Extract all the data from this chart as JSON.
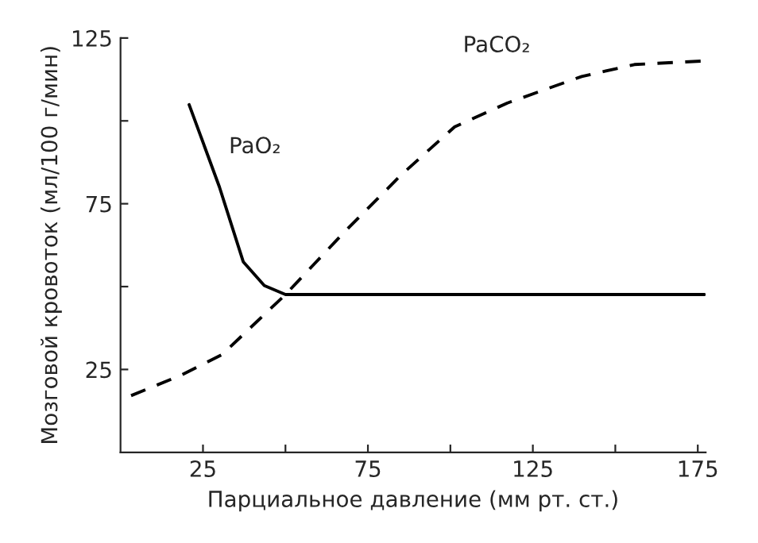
{
  "chart_data": {
    "type": "line",
    "xlabel": "Парциальное давление (мм рт. ст.)",
    "ylabel": "Мозговой кровоток (мл/100 г/мин)",
    "series": [
      {
        "name": "PaO₂",
        "color": "#000000",
        "line_style": "solid",
        "x": [
          20.8,
          30,
          37.2,
          43.6,
          50,
          100,
          177
        ],
        "values": [
          104.9,
          80,
          57.5,
          50.3,
          47.6,
          47.6,
          47.6
        ]
      },
      {
        "name": "PaCO₂",
        "color": "#000000",
        "line_style": "dashed",
        "x": [
          3.2,
          18,
          30.8,
          50,
          67.6,
          85.2,
          101.3,
          117.3,
          139.8,
          155.8,
          177.4
        ],
        "values": [
          17.1,
          23.1,
          29.5,
          47.6,
          66.2,
          83.8,
          98.2,
          105.4,
          113.4,
          117,
          118.1
        ]
      }
    ],
    "xlim": [
      0,
      177.4
    ],
    "ylim": [
      0,
      125
    ],
    "xticks": [
      25,
      {
        "value": 50,
        "label": null
      },
      75,
      {
        "value": 100,
        "label": null
      },
      125,
      {
        "value": 150,
        "label": null
      },
      175
    ],
    "yticks": [
      25,
      {
        "value": 50,
        "label": null
      },
      75,
      {
        "value": 100,
        "label": null
      },
      125
    ],
    "grid": false,
    "legend": false
  }
}
